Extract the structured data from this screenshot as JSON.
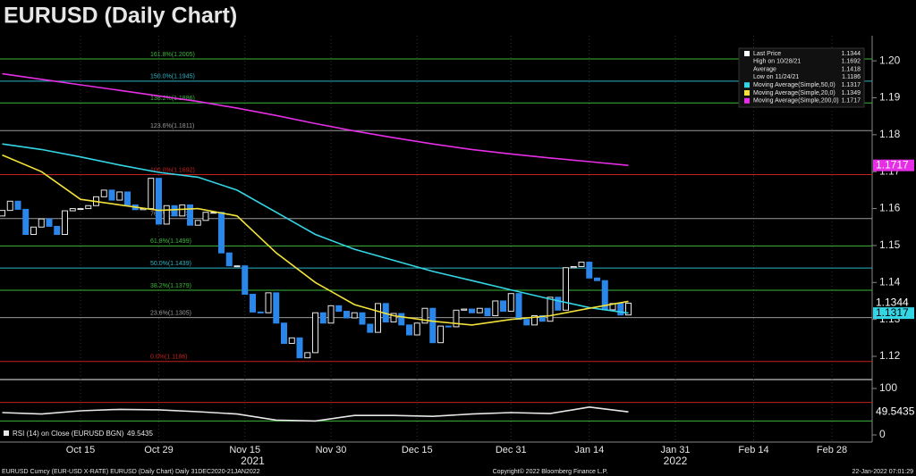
{
  "chart_data": [
    {
      "type": "candlestick",
      "title": "EURUSD (Daily Chart)",
      "categories": [
        "2021-10-01",
        "2021-10-04",
        "2021-10-05",
        "2021-10-06",
        "2021-10-07",
        "2021-10-08",
        "2021-10-11",
        "2021-10-12",
        "2021-10-13",
        "2021-10-14",
        "2021-10-15",
        "2021-10-18",
        "2021-10-19",
        "2021-10-20",
        "2021-10-21",
        "2021-10-22",
        "2021-10-25",
        "2021-10-26",
        "2021-10-27",
        "2021-10-28",
        "2021-10-29",
        "2021-11-01",
        "2021-11-02",
        "2021-11-03",
        "2021-11-04",
        "2021-11-05",
        "2021-11-08",
        "2021-11-09",
        "2021-11-10",
        "2021-11-11",
        "2021-11-12",
        "2021-11-15",
        "2021-11-16",
        "2021-11-17",
        "2021-11-18",
        "2021-11-19",
        "2021-11-22",
        "2021-11-23",
        "2021-11-24",
        "2021-11-25",
        "2021-11-26",
        "2021-11-29",
        "2021-11-30",
        "2021-12-01",
        "2021-12-02",
        "2021-12-03",
        "2021-12-06",
        "2021-12-07",
        "2021-12-08",
        "2021-12-09",
        "2021-12-10",
        "2021-12-13",
        "2021-12-14",
        "2021-12-15",
        "2021-12-16",
        "2021-12-17",
        "2021-12-20",
        "2021-12-21",
        "2021-12-22",
        "2021-12-23",
        "2021-12-24",
        "2021-12-27",
        "2021-12-28",
        "2021-12-29",
        "2021-12-30",
        "2021-12-31",
        "2022-01-03",
        "2022-01-04",
        "2022-01-05",
        "2022-01-06",
        "2022-01-07",
        "2022-01-10",
        "2022-01-11",
        "2022-01-12",
        "2022-01-13",
        "2022-01-14",
        "2022-01-17",
        "2022-01-18",
        "2022-01-19",
        "2022-01-20",
        "2022-01-21"
      ],
      "open": [
        1.158,
        1.1595,
        1.162,
        1.1598,
        1.153,
        1.155,
        1.1572,
        1.1552,
        1.153,
        1.1594,
        1.16,
        1.16,
        1.1608,
        1.1632,
        1.165,
        1.1623,
        1.1645,
        1.161,
        1.1597,
        1.16,
        1.1682,
        1.1558,
        1.1608,
        1.158,
        1.161,
        1.1555,
        1.1568,
        1.159,
        1.159,
        1.148,
        1.1445,
        1.1445,
        1.1368,
        1.132,
        1.1318,
        1.1372,
        1.129,
        1.1235,
        1.125,
        1.1196,
        1.121,
        1.1318,
        1.129,
        1.1337,
        1.1322,
        1.1304,
        1.1318,
        1.1287,
        1.1265,
        1.1343,
        1.1293,
        1.1316,
        1.1285,
        1.1258,
        1.129,
        1.133,
        1.1237,
        1.1282,
        1.128,
        1.1325,
        1.1328,
        1.1318,
        1.133,
        1.131,
        1.135,
        1.1322,
        1.137,
        1.13,
        1.1285,
        1.131,
        1.1295,
        1.136,
        1.1325,
        1.144,
        1.1443,
        1.1455,
        1.1412,
        1.1405,
        1.1326,
        1.1343,
        1.1312
      ],
      "close": [
        1.1595,
        1.162,
        1.1598,
        1.153,
        1.155,
        1.1572,
        1.1552,
        1.153,
        1.1594,
        1.16,
        1.16,
        1.1608,
        1.1632,
        1.165,
        1.1623,
        1.1645,
        1.161,
        1.1597,
        1.16,
        1.1682,
        1.1558,
        1.1608,
        1.158,
        1.161,
        1.1555,
        1.1568,
        1.159,
        1.159,
        1.148,
        1.1445,
        1.1445,
        1.1368,
        1.132,
        1.1318,
        1.1372,
        1.129,
        1.1235,
        1.125,
        1.1196,
        1.121,
        1.1318,
        1.129,
        1.1337,
        1.1322,
        1.1304,
        1.1318,
        1.1287,
        1.1265,
        1.1343,
        1.1293,
        1.1316,
        1.1285,
        1.1258,
        1.129,
        1.133,
        1.1237,
        1.1282,
        1.128,
        1.1325,
        1.1328,
        1.1318,
        1.133,
        1.131,
        1.135,
        1.1322,
        1.137,
        1.13,
        1.1285,
        1.131,
        1.1295,
        1.136,
        1.1325,
        1.144,
        1.1443,
        1.1455,
        1.1412,
        1.1405,
        1.1326,
        1.1343,
        1.1312,
        1.1344
      ],
      "up_color": "#e8e8e8",
      "down_color": "#2a86e8",
      "series": [
        {
          "name": "Moving Average(Simple,50,0)",
          "color": "#34d6e6",
          "x": [
            "2021-10-01",
            "2021-10-08",
            "2021-10-15",
            "2021-10-22",
            "2021-10-29",
            "2021-11-05",
            "2021-11-12",
            "2021-11-19",
            "2021-11-26",
            "2021-12-03",
            "2021-12-10",
            "2021-12-17",
            "2021-12-24",
            "2021-12-31",
            "2022-01-07",
            "2022-01-14",
            "2022-01-21"
          ],
          "values": [
            1.1775,
            1.176,
            1.174,
            1.1718,
            1.1698,
            1.1685,
            1.165,
            1.159,
            1.153,
            1.149,
            1.146,
            1.143,
            1.1405,
            1.138,
            1.1355,
            1.1332,
            1.1317
          ]
        },
        {
          "name": "Moving Average(Simple,20,0)",
          "color": "#f2e23a",
          "x": [
            "2021-10-01",
            "2021-10-08",
            "2021-10-15",
            "2021-10-22",
            "2021-10-29",
            "2021-11-05",
            "2021-11-12",
            "2021-11-19",
            "2021-11-26",
            "2021-12-03",
            "2021-12-10",
            "2021-12-17",
            "2021-12-24",
            "2021-12-31",
            "2022-01-07",
            "2022-01-14",
            "2022-01-21"
          ],
          "values": [
            1.1745,
            1.17,
            1.1625,
            1.161,
            1.1595,
            1.16,
            1.158,
            1.148,
            1.14,
            1.134,
            1.131,
            1.1295,
            1.1285,
            1.13,
            1.131,
            1.133,
            1.1349
          ]
        },
        {
          "name": "Moving Average(Simple,200,0)",
          "color": "#e62ee6",
          "x": [
            "2021-10-01",
            "2021-10-08",
            "2021-10-15",
            "2021-10-22",
            "2021-10-29",
            "2021-11-05",
            "2021-11-12",
            "2021-11-19",
            "2021-11-26",
            "2021-12-03",
            "2021-12-10",
            "2021-12-17",
            "2021-12-24",
            "2021-12-31",
            "2022-01-07",
            "2022-01-14",
            "2022-01-21"
          ],
          "values": [
            1.1965,
            1.195,
            1.1935,
            1.192,
            1.1905,
            1.189,
            1.1872,
            1.1852,
            1.183,
            1.181,
            1.1792,
            1.1775,
            1.176,
            1.1748,
            1.1737,
            1.1727,
            1.1717
          ]
        }
      ],
      "fib_levels": [
        {
          "label": "161.8%(1.2005)",
          "value": 1.2005,
          "color": "#3cb83c"
        },
        {
          "label": "150.0%(1.1945)",
          "value": 1.1945,
          "color": "#2bb5c4"
        },
        {
          "label": "138.2%(1.1886)",
          "value": 1.1886,
          "color": "#3cb83c"
        },
        {
          "label": "123.6%(1.1811)",
          "value": 1.1811,
          "color": "#9a9a9a"
        },
        {
          "label": "100.0%(1.1692)",
          "value": 1.1692,
          "color": "#c42020"
        },
        {
          "label": "76.4%(1.1573)",
          "value": 1.1573,
          "color": "#9a9a9a"
        },
        {
          "label": "61.8%(1.1499)",
          "value": 1.1499,
          "color": "#3cb83c"
        },
        {
          "label": "50.0%(1.1439)",
          "value": 1.1439,
          "color": "#2bb5c4"
        },
        {
          "label": "38.2%(1.1379)",
          "value": 1.1379,
          "color": "#3cb83c"
        },
        {
          "label": "23.6%(1.1305)",
          "value": 1.1305,
          "color": "#9a9a9a"
        },
        {
          "label": "0.0%(1.1186)",
          "value": 1.1186,
          "color": "#c42020"
        }
      ],
      "stats": [
        {
          "name": "Last Price",
          "value": 1.1344,
          "color": "#ffffff"
        },
        {
          "name": "High on 10/28/21",
          "value": 1.1692,
          "color": null
        },
        {
          "name": "Average",
          "value": 1.1418,
          "color": null
        },
        {
          "name": "Low on 11/24/21",
          "value": 1.1186,
          "color": null
        },
        {
          "name": "Moving Average(Simple,50,0)",
          "value": 1.1317,
          "color": "#34d6e6"
        },
        {
          "name": "Moving Average(Simple,20,0)",
          "value": 1.1349,
          "color": "#f2e23a"
        },
        {
          "name": "Moving Average(Simple,200,0)",
          "value": 1.1717,
          "color": "#e62ee6"
        }
      ],
      "xlim": [
        "2021-10-01",
        "2022-03-04"
      ],
      "xticks": [
        {
          "value": "2021-10-15",
          "label": "Oct 15"
        },
        {
          "value": "2021-10-29",
          "label": "Oct 29"
        },
        {
          "value": "2021-11-15",
          "label": "Nov 15"
        },
        {
          "value": "2021-11-30",
          "label": "Nov 30"
        },
        {
          "value": "2021-12-15",
          "label": "Dec 15"
        },
        {
          "value": "2021-12-31",
          "label": "Dec 31"
        },
        {
          "value": "2022-01-14",
          "label": "Jan 14"
        },
        {
          "value": "2022-01-31",
          "label": "Jan 31"
        },
        {
          "value": "2022-02-14",
          "label": "Feb 14"
        },
        {
          "value": "2022-02-28",
          "label": "Feb 28"
        }
      ],
      "year_labels": [
        {
          "value": "2021-11-16",
          "label": "2021"
        },
        {
          "value": "2022-01-31",
          "label": "2022"
        }
      ],
      "ylim": [
        1.1142,
        1.2068
      ],
      "yticks": [
        1.12,
        1.13,
        1.14,
        1.15,
        1.16,
        1.17,
        1.18,
        1.19,
        {
          "value": 1.2,
          "label": "1.20"
        }
      ],
      "grid": true
    },
    {
      "type": "line",
      "title": "RSI (14) on Close (EURUSD BGN)",
      "series": [
        {
          "name": "RSI (14)",
          "color": "#e8e8e8",
          "x": [
            "2021-10-01",
            "2021-10-08",
            "2021-10-15",
            "2021-10-22",
            "2021-10-29",
            "2021-11-05",
            "2021-11-12",
            "2021-11-19",
            "2021-11-26",
            "2021-12-03",
            "2021-12-10",
            "2021-12-17",
            "2021-12-24",
            "2021-12-31",
            "2022-01-07",
            "2022-01-14",
            "2022-01-21"
          ],
          "values": [
            48,
            45,
            52,
            55,
            54,
            50,
            45,
            32,
            30,
            42,
            42,
            40,
            45,
            48,
            46,
            60,
            49.5435
          ]
        }
      ],
      "levels": [
        {
          "value": 70,
          "color": "#c42020"
        },
        {
          "value": 30,
          "color": "#3cb83c"
        }
      ],
      "ylim": [
        -15.4,
        117.3
      ],
      "yticks": [
        0,
        100
      ]
    }
  ],
  "footer": {
    "left": "EURUSD Curncy (EUR-USD X-RATE) EURUSD (Daily Chart)  Daily 31DEC2020-21JAN2022",
    "center": "Copyright© 2022 Bloomberg Finance L.P.",
    "right": "22-Jan-2022 07:01:29"
  }
}
